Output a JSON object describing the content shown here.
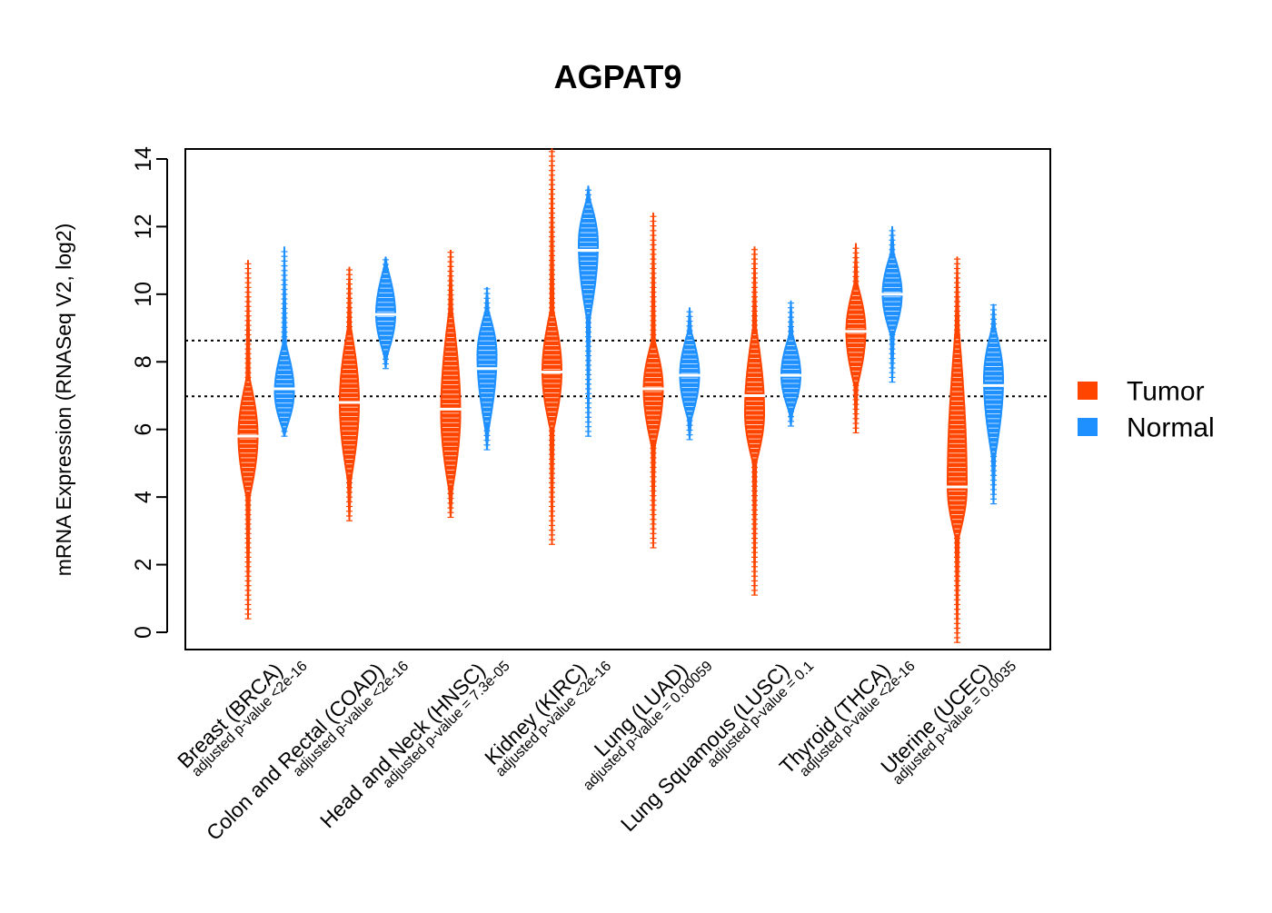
{
  "chart_data": {
    "type": "violin",
    "title": "AGPAT9",
    "ylabel": "mRNA Expression (RNASeq V2, log2)",
    "xlabel": "",
    "ylim": [
      -0.5,
      14.3
    ],
    "yticks": [
      0,
      2,
      4,
      6,
      8,
      10,
      12,
      14
    ],
    "ytick_labels": [
      "0",
      "2",
      "4",
      "6",
      "8",
      "10",
      "12",
      "14"
    ],
    "reference_lines": [
      8.63,
      6.98
    ],
    "grid": false,
    "legend_position": "right",
    "legend": [
      {
        "label": "Tumor",
        "color": "#FF4500"
      },
      {
        "label": "Normal",
        "color": "#1E90FF"
      }
    ],
    "categories": [
      {
        "label": "Breast (BRCA)",
        "pvalue": "adjusted p-value <2e-16"
      },
      {
        "label": "Colon and Rectal (COAD)",
        "pvalue": "adjusted p-value <2e-16"
      },
      {
        "label": "Head and Neck (HNSC)",
        "pvalue": "adjusted p-value = 7.3e-05"
      },
      {
        "label": "Kidney (KIRC)",
        "pvalue": "adjusted p-value <2e-16"
      },
      {
        "label": "Lung (LUAD)",
        "pvalue": "adjusted p-value = 0.00059"
      },
      {
        "label": "Lung Squamous (LUSC)",
        "pvalue": "adjusted p-value = 0.1"
      },
      {
        "label": "Thyroid (THCA)",
        "pvalue": "adjusted p-value <2e-16"
      },
      {
        "label": "Uterine (UCEC)",
        "pvalue": "adjusted p-value = 0.0035"
      }
    ],
    "series": [
      {
        "name": "Tumor",
        "color": "#FF4500",
        "groups": [
          {
            "median": 5.8,
            "min": 0.4,
            "max": 11.0,
            "bulk_low": 4.0,
            "bulk_high": 7.5,
            "peak": 5.8
          },
          {
            "median": 6.8,
            "min": 3.3,
            "max": 10.8,
            "bulk_low": 4.5,
            "bulk_high": 9.0,
            "peak": 6.8
          },
          {
            "median": 6.6,
            "min": 3.4,
            "max": 11.3,
            "bulk_low": 4.2,
            "bulk_high": 9.5,
            "peak": 6.5
          },
          {
            "median": 7.7,
            "min": 2.6,
            "max": 14.3,
            "bulk_low": 6.0,
            "bulk_high": 9.5,
            "peak": 7.7
          },
          {
            "median": 7.2,
            "min": 2.5,
            "max": 12.4,
            "bulk_low": 5.5,
            "bulk_high": 8.6,
            "peak": 7.2
          },
          {
            "median": 7.0,
            "min": 1.1,
            "max": 11.4,
            "bulk_low": 5.0,
            "bulk_high": 9.0,
            "peak": 6.5
          },
          {
            "median": 8.9,
            "min": 5.9,
            "max": 11.5,
            "bulk_low": 7.3,
            "bulk_high": 10.3,
            "peak": 8.9
          },
          {
            "median": 4.3,
            "min": -0.3,
            "max": 11.1,
            "bulk_low": 2.8,
            "bulk_high": 9.0,
            "peak": 4.3
          }
        ]
      },
      {
        "name": "Normal",
        "color": "#1E90FF",
        "groups": [
          {
            "median": 7.2,
            "min": 5.8,
            "max": 11.4,
            "bulk_low": 6.0,
            "bulk_high": 8.5,
            "peak": 7.1
          },
          {
            "median": 9.4,
            "min": 7.8,
            "max": 11.1,
            "bulk_low": 8.2,
            "bulk_high": 10.8,
            "peak": 9.4
          },
          {
            "median": 7.8,
            "min": 5.4,
            "max": 10.2,
            "bulk_low": 6.0,
            "bulk_high": 9.5,
            "peak": 8.2
          },
          {
            "median": 11.3,
            "min": 5.8,
            "max": 13.2,
            "bulk_low": 9.3,
            "bulk_high": 12.8,
            "peak": 11.5
          },
          {
            "median": 7.6,
            "min": 5.7,
            "max": 9.6,
            "bulk_low": 6.3,
            "bulk_high": 8.9,
            "peak": 7.6
          },
          {
            "median": 7.6,
            "min": 6.1,
            "max": 9.8,
            "bulk_low": 6.5,
            "bulk_high": 8.8,
            "peak": 7.6
          },
          {
            "median": 10.0,
            "min": 7.4,
            "max": 12.0,
            "bulk_low": 8.8,
            "bulk_high": 11.2,
            "peak": 10.0
          },
          {
            "median": 7.3,
            "min": 3.8,
            "max": 9.7,
            "bulk_low": 5.2,
            "bulk_high": 9.0,
            "peak": 7.5
          }
        ]
      }
    ]
  }
}
